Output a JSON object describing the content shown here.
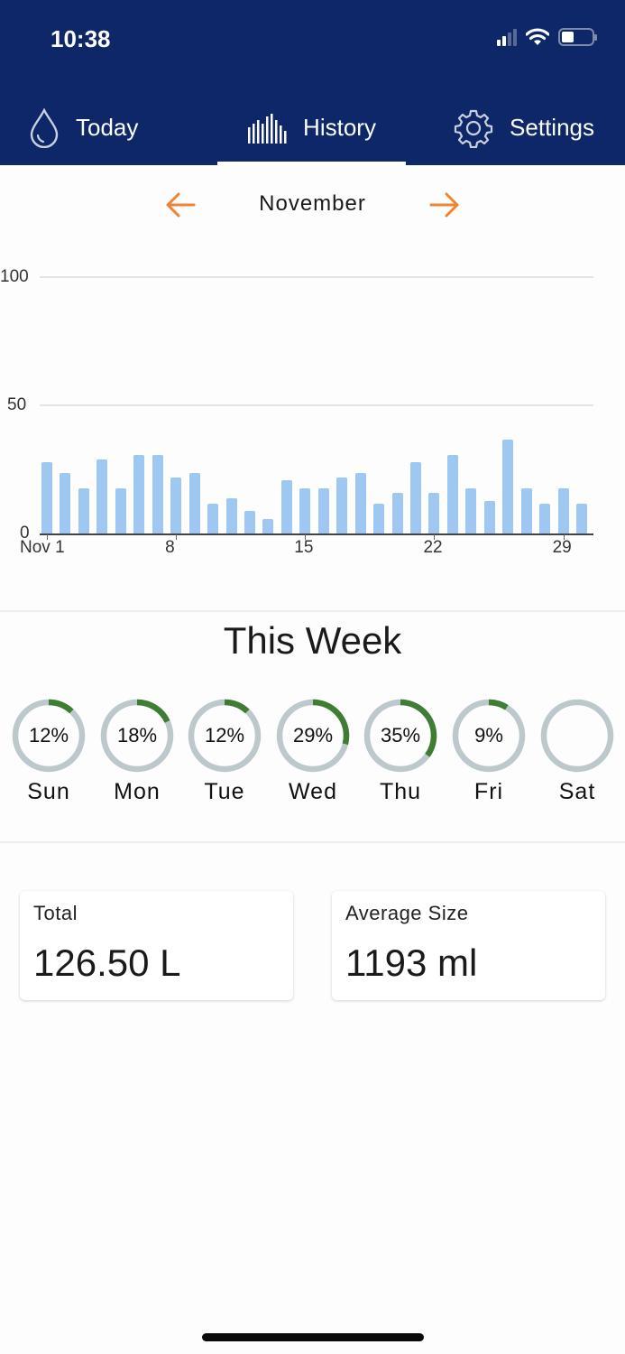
{
  "status_bar": {
    "time": "10:38",
    "icons": [
      "cellular-signal-icon",
      "wifi-icon",
      "battery-icon"
    ]
  },
  "tabs": [
    {
      "label": "Today",
      "icon": "water-drop-icon",
      "active": false
    },
    {
      "label": "History",
      "icon": "bar-chart-icon",
      "active": true
    },
    {
      "label": "Settings",
      "icon": "gear-icon",
      "active": false
    }
  ],
  "month_nav": {
    "label": "November",
    "prev_icon": "arrow-left-icon",
    "next_icon": "arrow-right-icon",
    "accent": "#ee8433"
  },
  "colors": {
    "header_bg": "#0e2768",
    "bar": "#9ec8f2",
    "ring_track": "#bcc8cc",
    "ring_progress": "#3f7d35"
  },
  "chart_data": {
    "type": "bar",
    "title": "",
    "xlabel": "",
    "ylabel": "",
    "ylim": [
      0,
      100
    ],
    "yticks": [
      "0",
      "50",
      "100"
    ],
    "xtick_labels": [
      {
        "day": 1,
        "label": "Nov 1"
      },
      {
        "day": 8,
        "label": "8"
      },
      {
        "day": 15,
        "label": "15"
      },
      {
        "day": 22,
        "label": "22"
      },
      {
        "day": 29,
        "label": "29"
      }
    ],
    "grid": true,
    "categories": [
      1,
      2,
      3,
      4,
      5,
      6,
      7,
      8,
      9,
      10,
      11,
      12,
      13,
      14,
      15,
      16,
      17,
      18,
      19,
      20,
      21,
      22,
      23,
      24,
      25,
      26,
      27,
      28,
      29,
      30
    ],
    "values": [
      28,
      24,
      18,
      29,
      18,
      31,
      31,
      22,
      24,
      12,
      14,
      9,
      6,
      21,
      18,
      18,
      22,
      24,
      12,
      16,
      28,
      16,
      31,
      18,
      13,
      37,
      18,
      12,
      18,
      12
    ]
  },
  "this_week": {
    "title": "This Week",
    "days": [
      {
        "label": "Sun",
        "percent": 12,
        "text": "12%"
      },
      {
        "label": "Mon",
        "percent": 18,
        "text": "18%"
      },
      {
        "label": "Tue",
        "percent": 12,
        "text": "12%"
      },
      {
        "label": "Wed",
        "percent": 29,
        "text": "29%"
      },
      {
        "label": "Thu",
        "percent": 35,
        "text": "35%"
      },
      {
        "label": "Fri",
        "percent": 9,
        "text": "9%"
      },
      {
        "label": "Sat",
        "percent": 0,
        "text": ""
      }
    ]
  },
  "stats": {
    "total": {
      "title": "Total",
      "value": "126.50 L"
    },
    "average": {
      "title": "Average Size",
      "value": "1193 ml"
    }
  }
}
